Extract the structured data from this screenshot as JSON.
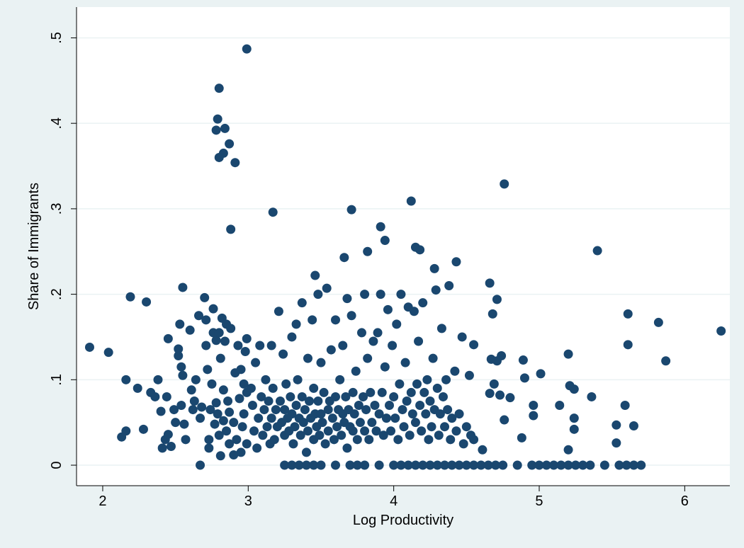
{
  "chart_data": {
    "type": "scatter",
    "x_label": "Log Productivity",
    "y_label": "Share of Immigrants",
    "xlim": [
      1.82,
      6.31
    ],
    "ylim": [
      -0.024,
      0.536
    ],
    "xticks": [
      2,
      3,
      4,
      5,
      6
    ],
    "yticks": [
      {
        "value": 0,
        "label": "0"
      },
      {
        "value": 0.1,
        "label": ".1"
      },
      {
        "value": 0.2,
        "label": ".2"
      },
      {
        "value": 0.3,
        "label": ".3"
      },
      {
        "value": 0.4,
        "label": ".4"
      },
      {
        "value": 0.5,
        "label": ".5"
      }
    ],
    "grid": true,
    "series": [
      {
        "color": "#1a476f",
        "x": [
          1.91,
          2.04,
          2.19,
          2.3,
          2.55,
          2.99,
          2.8,
          2.79,
          2.78,
          2.84,
          2.87,
          2.83,
          2.8,
          2.91,
          3.17,
          2.88,
          3.71,
          4.12,
          4.76,
          3.91,
          3.94,
          3.82,
          4.15,
          4.18,
          3.66,
          3.46,
          4.43,
          5.4,
          4.28,
          4.66,
          4.71,
          5.61,
          5.82,
          6.25,
          5.61,
          5.87,
          5.2,
          5.01,
          4.89,
          4.74,
          4.67,
          4.68,
          4.55,
          5.21,
          5.24,
          5.36,
          5.14,
          4.96,
          5.59,
          5.24,
          5.24,
          5.53,
          5.65,
          5.53,
          5.2,
          4.96,
          4.76,
          4.88,
          4.71,
          4.8,
          4.73,
          4.69,
          4.66,
          4.9,
          4.61,
          2.67,
          3.25,
          3.3,
          3.35,
          3.4,
          3.45,
          3.5,
          3.6,
          3.7,
          3.75,
          3.8,
          3.9,
          4.0,
          4.05,
          4.1,
          4.15,
          4.2,
          4.25,
          4.3,
          4.35,
          4.4,
          4.45,
          4.5,
          4.55,
          4.6,
          4.65,
          4.7,
          4.75,
          4.85,
          4.95,
          5.0,
          5.05,
          5.1,
          5.15,
          5.2,
          5.25,
          5.3,
          5.35,
          5.45,
          5.55,
          5.6,
          5.65,
          5.7,
          2.13,
          2.16,
          2.16,
          2.24,
          2.28,
          2.33,
          2.36,
          2.38,
          2.4,
          2.41,
          2.43,
          2.44,
          2.45,
          2.45,
          2.47,
          2.49,
          2.5,
          2.52,
          2.52,
          2.53,
          2.54,
          2.54,
          2.55,
          2.56,
          2.57,
          2.6,
          2.61,
          2.62,
          2.63,
          2.64,
          2.66,
          2.67,
          2.68,
          2.7,
          2.71,
          2.71,
          2.72,
          2.73,
          2.73,
          2.74,
          2.75,
          2.76,
          2.76,
          2.77,
          2.78,
          2.78,
          2.79,
          2.8,
          2.8,
          2.81,
          2.81,
          2.82,
          2.83,
          2.83,
          2.84,
          2.85,
          2.85,
          2.86,
          2.87,
          2.87,
          2.88,
          2.9,
          2.9,
          2.91,
          2.92,
          2.93,
          2.94,
          2.95,
          2.95,
          2.96,
          2.97,
          2.97,
          2.98,
          2.99,
          2.99,
          2.99,
          3.02,
          3.03,
          3.04,
          3.05,
          3.06,
          3.07,
          3.08,
          3.09,
          3.1,
          3.11,
          3.12,
          3.13,
          3.14,
          3.15,
          3.16,
          3.16,
          3.17,
          3.18,
          3.19,
          3.2,
          3.21,
          3.22,
          3.23,
          3.24,
          3.25,
          3.25,
          3.26,
          3.27,
          3.28,
          3.29,
          3.3,
          3.3,
          3.31,
          3.32,
          3.33,
          3.33,
          3.34,
          3.35,
          3.36,
          3.37,
          3.37,
          3.38,
          3.39,
          3.4,
          3.41,
          3.41,
          3.42,
          3.43,
          3.44,
          3.45,
          3.45,
          3.46,
          3.47,
          3.48,
          3.48,
          3.49,
          3.5,
          3.5,
          3.51,
          3.52,
          3.53,
          3.54,
          3.55,
          3.55,
          3.56,
          3.57,
          3.58,
          3.59,
          3.6,
          3.6,
          3.61,
          3.62,
          3.63,
          3.64,
          3.65,
          3.65,
          3.66,
          3.67,
          3.68,
          3.68,
          3.69,
          3.7,
          3.71,
          3.72,
          3.72,
          3.73,
          3.74,
          3.75,
          3.76,
          3.77,
          3.78,
          3.79,
          3.8,
          3.8,
          3.81,
          3.82,
          3.83,
          3.84,
          3.85,
          3.86,
          3.87,
          3.88,
          3.89,
          3.9,
          3.91,
          3.92,
          3.93,
          3.94,
          3.95,
          3.96,
          3.97,
          3.98,
          3.99,
          4.0,
          4.01,
          4.02,
          4.03,
          4.04,
          4.05,
          4.06,
          4.07,
          4.08,
          4.09,
          4.1,
          4.11,
          4.12,
          4.13,
          4.14,
          4.15,
          4.16,
          4.17,
          4.18,
          4.19,
          4.2,
          4.21,
          4.22,
          4.23,
          4.24,
          4.25,
          4.26,
          4.27,
          4.28,
          4.29,
          4.3,
          4.31,
          4.32,
          4.33,
          4.34,
          4.35,
          4.36,
          4.37,
          4.38,
          4.39,
          4.4,
          4.42,
          4.43,
          4.45,
          4.47,
          4.48,
          4.5,
          4.52,
          4.53,
          4.55
        ],
        "values": [
          0.138,
          0.132,
          0.197,
          0.191,
          0.208,
          0.487,
          0.441,
          0.405,
          0.392,
          0.394,
          0.376,
          0.365,
          0.36,
          0.354,
          0.296,
          0.276,
          0.299,
          0.309,
          0.329,
          0.279,
          0.263,
          0.25,
          0.255,
          0.252,
          0.243,
          0.222,
          0.238,
          0.251,
          0.23,
          0.213,
          0.194,
          0.177,
          0.167,
          0.157,
          0.141,
          0.122,
          0.13,
          0.107,
          0.123,
          0.128,
          0.124,
          0.177,
          0.141,
          0.093,
          0.089,
          0.08,
          0.07,
          0.07,
          0.07,
          0.055,
          0.042,
          0.047,
          0.046,
          0.026,
          0.018,
          0.058,
          0.053,
          0.032,
          0.122,
          0.079,
          0.082,
          0.095,
          0.084,
          0.102,
          0.018,
          0,
          0,
          0,
          0,
          0,
          0,
          0,
          0,
          0,
          0,
          0,
          0,
          0,
          0,
          0,
          0,
          0,
          0,
          0,
          0,
          0,
          0,
          0,
          0,
          0,
          0,
          0,
          0,
          0,
          0,
          0,
          0,
          0,
          0,
          0,
          0,
          0,
          0,
          0,
          0,
          0,
          0,
          0,
          0.033,
          0.04,
          0.1,
          0.09,
          0.042,
          0.085,
          0.08,
          0.1,
          0.063,
          0.02,
          0.03,
          0.08,
          0.148,
          0.036,
          0.022,
          0.065,
          0.05,
          0.128,
          0.136,
          0.165,
          0.115,
          0.07,
          0.105,
          0.048,
          0.03,
          0.158,
          0.088,
          0.065,
          0.075,
          0.1,
          0.175,
          0.055,
          0.068,
          0.196,
          0.14,
          0.17,
          0.112,
          0.02,
          0.03,
          0.065,
          0.095,
          0.155,
          0.183,
          0.048,
          0.073,
          0.146,
          0.06,
          0.035,
          0.155,
          0.011,
          0.125,
          0.172,
          0.088,
          0.052,
          0.145,
          0.165,
          0.04,
          0.075,
          0.025,
          0.062,
          0.16,
          0.012,
          0.05,
          0.108,
          0.03,
          0.14,
          0.078,
          0.112,
          0.015,
          0.045,
          0.095,
          0.06,
          0.133,
          0.148,
          0.085,
          0.025,
          0.09,
          0.07,
          0.04,
          0.12,
          0.02,
          0.055,
          0.14,
          0.08,
          0.035,
          0.065,
          0.1,
          0.045,
          0.075,
          0.025,
          0.14,
          0.055,
          0.09,
          0.03,
          0.065,
          0.045,
          0.18,
          0.075,
          0.05,
          0.13,
          0.035,
          0.065,
          0.095,
          0.055,
          0.04,
          0.08,
          0.15,
          0.06,
          0.025,
          0.045,
          0.165,
          0.07,
          0.1,
          0.055,
          0.035,
          0.19,
          0.08,
          0.05,
          0.065,
          0.015,
          0.125,
          0.04,
          0.075,
          0.055,
          0.17,
          0.09,
          0.03,
          0.06,
          0.045,
          0.2,
          0.075,
          0.035,
          0.06,
          0.12,
          0.05,
          0.085,
          0.025,
          0.207,
          0.065,
          0.04,
          0.075,
          0.135,
          0.055,
          0.03,
          0.17,
          0.08,
          0.045,
          0.065,
          0.1,
          0.035,
          0.14,
          0.06,
          0.05,
          0.08,
          0.195,
          0.02,
          0.065,
          0.045,
          0.175,
          0.085,
          0.04,
          0.06,
          0.11,
          0.03,
          0.07,
          0.05,
          0.155,
          0.08,
          0.2,
          0.04,
          0.065,
          0.125,
          0.03,
          0.085,
          0.05,
          0.145,
          0.07,
          0.04,
          0.155,
          0.06,
          0.2,
          0.085,
          0.035,
          0.115,
          0.055,
          0.182,
          0.07,
          0.04,
          0.14,
          0.08,
          0.055,
          0.165,
          0.03,
          0.095,
          0.2,
          0.065,
          0.045,
          0.12,
          0.075,
          0.185,
          0.035,
          0.085,
          0.06,
          0.18,
          0.05,
          0.095,
          0.145,
          0.07,
          0.04,
          0.19,
          0.085,
          0.06,
          0.1,
          0.03,
          0.075,
          0.045,
          0.125,
          0.065,
          0.205,
          0.09,
          0.035,
          0.06,
          0.16,
          0.08,
          0.045,
          0.1,
          0.065,
          0.21,
          0.03,
          0.055,
          0.11,
          0.04,
          0.06,
          0.15,
          0.025,
          0.045,
          0.105,
          0.035,
          0.03
        ]
      }
    ]
  }
}
